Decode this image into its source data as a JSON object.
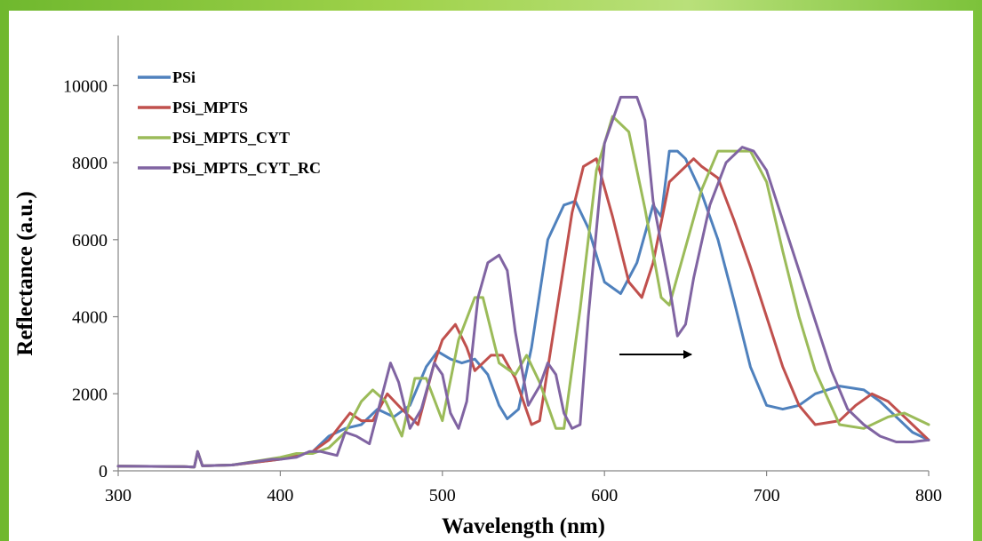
{
  "chart_data": {
    "type": "line",
    "title": "",
    "xlabel": "Wavelength (nm)",
    "ylabel": "Reflectance (a.u.)",
    "xlim": [
      300,
      800
    ],
    "ylim": [
      0,
      10000
    ],
    "xticks": [
      300,
      400,
      500,
      600,
      700,
      800
    ],
    "yticks": [
      0,
      2000,
      4000,
      6000,
      8000,
      10000
    ],
    "grid": false,
    "legend": "top-left",
    "annotation": "arrow pointing right (red shift)",
    "series": [
      {
        "name": "PSi",
        "color": "#4f81bd",
        "x": [
          300,
          340,
          347,
          349,
          352,
          370,
          400,
          410,
          420,
          430,
          440,
          450,
          460,
          470,
          480,
          490,
          497,
          505,
          512,
          520,
          528,
          535,
          540,
          547,
          555,
          565,
          575,
          582,
          590,
          600,
          610,
          620,
          630,
          635,
          640,
          645,
          650,
          660,
          670,
          680,
          690,
          700,
          710,
          720,
          730,
          745,
          760,
          770,
          780,
          790,
          800
        ],
        "y": [
          120,
          110,
          100,
          500,
          130,
          150,
          300,
          400,
          500,
          900,
          1100,
          1200,
          1600,
          1400,
          1700,
          2700,
          3100,
          2900,
          2800,
          2900,
          2500,
          1700,
          1350,
          1600,
          3200,
          6000,
          6900,
          7000,
          6300,
          4900,
          4600,
          5400,
          6900,
          6600,
          8300,
          8300,
          8100,
          7200,
          6000,
          4400,
          2700,
          1700,
          1600,
          1700,
          2000,
          2200,
          2100,
          1800,
          1400,
          1000,
          800
        ]
      },
      {
        "name": "PSi_MPTS",
        "color": "#c0504d",
        "x": [
          300,
          340,
          347,
          349,
          352,
          370,
          400,
          410,
          420,
          430,
          443,
          450,
          457,
          466,
          475,
          485,
          495,
          500,
          508,
          515,
          520,
          530,
          537,
          545,
          555,
          560,
          570,
          580,
          587,
          595,
          605,
          615,
          623,
          630,
          640,
          650,
          655,
          660,
          670,
          680,
          690,
          700,
          710,
          720,
          730,
          745,
          755,
          765,
          775,
          790,
          800
        ],
        "y": [
          120,
          110,
          100,
          500,
          130,
          150,
          300,
          400,
          500,
          800,
          1500,
          1300,
          1300,
          2000,
          1600,
          1200,
          2800,
          3400,
          3800,
          3200,
          2600,
          3000,
          3000,
          2400,
          1200,
          1300,
          4000,
          6700,
          7900,
          8100,
          6600,
          4900,
          4500,
          5400,
          7500,
          7900,
          8100,
          7900,
          7600,
          6500,
          5300,
          4000,
          2700,
          1700,
          1200,
          1300,
          1700,
          2000,
          1800,
          1200,
          800
        ]
      },
      {
        "name": "PSi_MPTS_CYT",
        "color": "#9bbb59",
        "x": [
          300,
          340,
          347,
          349,
          352,
          370,
          400,
          410,
          420,
          430,
          440,
          450,
          457,
          465,
          475,
          483,
          490,
          500,
          510,
          520,
          525,
          535,
          545,
          552,
          560,
          570,
          575,
          585,
          595,
          605,
          615,
          625,
          635,
          640,
          650,
          660,
          670,
          680,
          690,
          700,
          710,
          720,
          730,
          745,
          760,
          775,
          785,
          800
        ],
        "y": [
          120,
          110,
          100,
          500,
          130,
          150,
          350,
          450,
          450,
          600,
          1000,
          1800,
          2100,
          1800,
          900,
          2400,
          2400,
          1300,
          3400,
          4500,
          4500,
          2800,
          2500,
          3000,
          2300,
          1100,
          1100,
          4200,
          7800,
          9200,
          8800,
          6800,
          4500,
          4300,
          5800,
          7300,
          8300,
          8300,
          8300,
          7500,
          5700,
          4000,
          2600,
          1200,
          1100,
          1400,
          1500,
          1200
        ]
      },
      {
        "name": "PSi_MPTS_CYT_RC",
        "color": "#8064a2",
        "x": [
          300,
          340,
          347,
          349,
          352,
          370,
          395,
          400,
          410,
          418,
          425,
          435,
          440,
          447,
          455,
          468,
          473,
          480,
          487,
          495,
          500,
          505,
          510,
          515,
          522,
          528,
          535,
          540,
          545,
          553,
          560,
          565,
          570,
          575,
          580,
          585,
          590,
          600,
          610,
          620,
          625,
          630,
          640,
          645,
          650,
          655,
          665,
          675,
          685,
          692,
          700,
          710,
          720,
          730,
          740,
          750,
          760,
          770,
          780,
          790,
          800
        ],
        "y": [
          120,
          110,
          100,
          500,
          130,
          150,
          300,
          300,
          350,
          500,
          500,
          400,
          1000,
          900,
          700,
          2800,
          2300,
          1100,
          1600,
          2800,
          2500,
          1500,
          1100,
          1800,
          4500,
          5400,
          5600,
          5200,
          3600,
          1700,
          2200,
          2800,
          2500,
          1500,
          1100,
          1200,
          4000,
          8500,
          9700,
          9700,
          9100,
          7000,
          4800,
          3500,
          3800,
          5000,
          6900,
          8000,
          8400,
          8300,
          7800,
          6500,
          5200,
          3900,
          2600,
          1600,
          1200,
          900,
          750,
          750,
          800
        ]
      }
    ]
  }
}
